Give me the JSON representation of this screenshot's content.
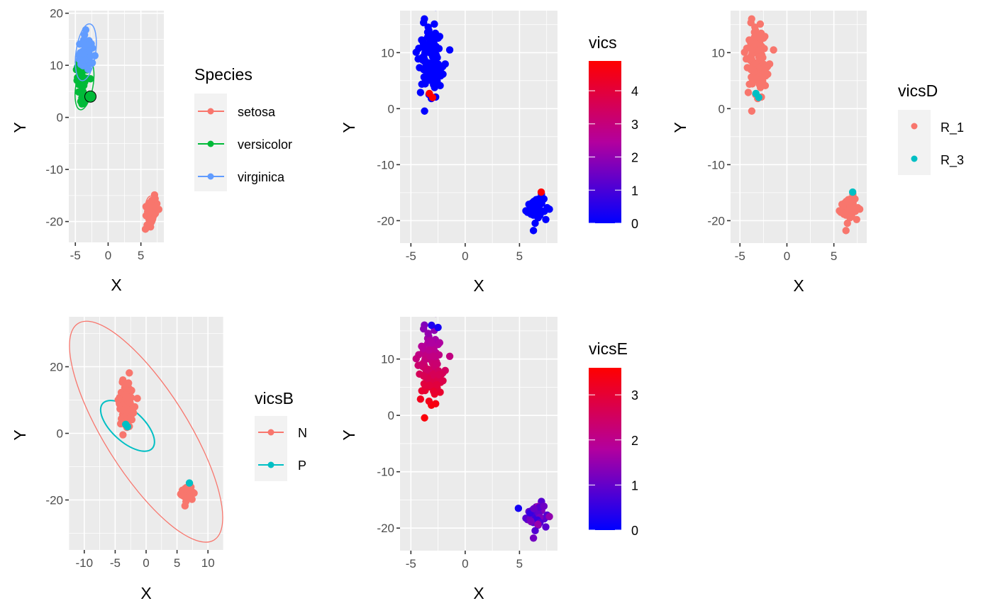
{
  "chart_data": [
    {
      "id": "species",
      "type": "scatter",
      "overlay": "ellipse",
      "xlabel": "X",
      "ylabel": "Y",
      "xlim": [
        -6,
        8.5
      ],
      "ylim": [
        -24,
        20.5
      ],
      "xticks": [
        -5,
        0,
        5
      ],
      "yticks": [
        -20,
        -10,
        0,
        10,
        20
      ],
      "grid": true,
      "legend": {
        "title": "Species",
        "placement": "right",
        "kind": "line-point",
        "entries": [
          {
            "label": "setosa",
            "color": "#F8766D"
          },
          {
            "label": "versicolor",
            "color": "#00BA38"
          },
          {
            "label": "virginica",
            "color": "#619CFF"
          }
        ]
      },
      "series": [
        {
          "name": "setosa",
          "color": "#F8766D",
          "center": [
            6.5,
            -18
          ],
          "spread": [
            0.55,
            1.6
          ],
          "n": 50,
          "ellipse": {
            "center": [
              6.5,
              -18
            ],
            "rx": 0.9,
            "ry": 2.9,
            "angle": 0
          }
        },
        {
          "name": "versicolor",
          "color": "#00BA38",
          "center": [
            -3.9,
            6.5
          ],
          "spread": [
            0.55,
            2.3
          ],
          "n": 50,
          "ellipse": {
            "center": [
              -3.6,
              6.2
            ],
            "rx": 1.3,
            "ry": 4.8,
            "angle": 10
          }
        },
        {
          "name": "virginica",
          "color": "#619CFF",
          "center": [
            -3.4,
            12.5
          ],
          "spread": [
            0.7,
            1.8
          ],
          "n": 50,
          "ellipse": {
            "center": [
              -3.4,
              12.5
            ],
            "rx": 1.5,
            "ry": 5.5,
            "angle": 8
          }
        }
      ],
      "highlight": {
        "x": -2.7,
        "y": 4.0,
        "label": "highlighted point",
        "color": "#00BA38"
      }
    },
    {
      "id": "vics",
      "type": "scatter",
      "xlabel": "X",
      "ylabel": "Y",
      "xlim": [
        -6,
        8.5
      ],
      "ylim": [
        -24,
        17.5
      ],
      "xticks": [
        -5,
        0,
        5
      ],
      "yticks": [
        -20,
        -10,
        0,
        10
      ],
      "grid": true,
      "colorbar": {
        "title": "vics",
        "min": 0,
        "max": 4.9,
        "ticks": [
          0,
          1,
          2,
          3,
          4
        ],
        "low_color": "#0000FF",
        "high_color": "#FF0000",
        "placement": "right"
      },
      "clusters": [
        {
          "center": [
            -3.3,
            9.0
          ],
          "spread": [
            0.9,
            3.8
          ],
          "n": 100,
          "value": 0
        },
        {
          "center": [
            6.5,
            -18.0
          ],
          "spread": [
            0.55,
            1.6
          ],
          "n": 50,
          "value": 0
        }
      ],
      "special_points": [
        {
          "x": -3.3,
          "y": 2.7,
          "value": 4.9
        },
        {
          "x": -3.0,
          "y": 2.0,
          "value": 4.9
        },
        {
          "x": 7.0,
          "y": -14.9,
          "value": 4.9
        }
      ]
    },
    {
      "id": "vicsD",
      "type": "scatter",
      "xlabel": "X",
      "ylabel": "Y",
      "xlim": [
        -6,
        8.5
      ],
      "ylim": [
        -24,
        17.5
      ],
      "xticks": [
        -5,
        0,
        5
      ],
      "yticks": [
        -20,
        -10,
        0,
        10
      ],
      "grid": true,
      "legend": {
        "title": "vicsD",
        "placement": "right",
        "kind": "point",
        "entries": [
          {
            "label": "R_1",
            "color": "#F8766D"
          },
          {
            "label": "R_3",
            "color": "#00BFC4"
          }
        ]
      },
      "clusters": [
        {
          "center": [
            -3.3,
            9.0
          ],
          "spread": [
            0.9,
            3.8
          ],
          "n": 100,
          "color": "#F8766D"
        },
        {
          "center": [
            6.5,
            -18.0
          ],
          "spread": [
            0.55,
            1.6
          ],
          "n": 50,
          "color": "#F8766D"
        }
      ],
      "special_points": [
        {
          "x": -3.3,
          "y": 2.7,
          "color": "#00BFC4"
        },
        {
          "x": -3.0,
          "y": 2.0,
          "color": "#00BFC4"
        },
        {
          "x": 7.0,
          "y": -14.9,
          "color": "#00BFC4"
        }
      ]
    },
    {
      "id": "vicsB",
      "type": "scatter",
      "overlay": "ellipse",
      "xlabel": "X",
      "ylabel": "Y",
      "xlim": [
        -12.5,
        12.5
      ],
      "ylim": [
        -35,
        35
      ],
      "xticks": [
        -10,
        -5,
        0,
        5,
        10
      ],
      "yticks": [
        -20,
        0,
        20
      ],
      "grid": true,
      "legend": {
        "title": "vicsB",
        "placement": "right",
        "kind": "line-point",
        "entries": [
          {
            "label": "N",
            "color": "#F8766D"
          },
          {
            "label": "P",
            "color": "#00BFC4"
          }
        ]
      },
      "clusters": [
        {
          "center": [
            -3.3,
            9.0
          ],
          "spread": [
            0.9,
            3.8
          ],
          "n": 100,
          "color": "#F8766D"
        },
        {
          "center": [
            6.5,
            -18.0
          ],
          "spread": [
            0.55,
            1.6
          ],
          "n": 50,
          "color": "#F8766D"
        }
      ],
      "special_points": [
        {
          "x": -3.3,
          "y": 2.7,
          "color": "#00BFC4"
        },
        {
          "x": -3.0,
          "y": 2.0,
          "color": "#00BFC4"
        },
        {
          "x": 7.0,
          "y": -14.9,
          "color": "#00BFC4"
        }
      ],
      "ellipses": [
        {
          "name": "N",
          "color": "#F8766D",
          "points": [
            [
              -11,
              33
            ],
            [
              11,
              -32
            ]
          ],
          "width": 4.2
        },
        {
          "name": "P",
          "color": "#00BFC4",
          "points": [
            [
              -7,
              9
            ],
            [
              1,
              -4.5
            ]
          ],
          "width": 1.6
        }
      ]
    },
    {
      "id": "vicsE",
      "type": "scatter",
      "xlabel": "X",
      "ylabel": "Y",
      "xlim": [
        -6,
        8.5
      ],
      "ylim": [
        -24,
        17.5
      ],
      "xticks": [
        -5,
        0,
        5
      ],
      "yticks": [
        -20,
        -10,
        0,
        10
      ],
      "grid": true,
      "colorbar": {
        "title": "vicsE",
        "min": 0,
        "max": 3.6,
        "ticks": [
          0,
          1,
          2,
          3
        ],
        "low_color": "#0000FF",
        "high_color": "#FF0000",
        "placement": "right"
      },
      "clusters": [
        {
          "center": [
            -3.3,
            9.0
          ],
          "spread": [
            0.9,
            3.8
          ],
          "n": 100,
          "value_at_bottom": 3.5,
          "value_at_top": 1.2
        },
        {
          "center": [
            6.5,
            -18.0
          ],
          "spread": [
            0.55,
            1.6
          ],
          "n": 50,
          "value_range": [
            0.5,
            1.6
          ]
        }
      ],
      "special_points": [
        {
          "x": 4.9,
          "y": -16.5,
          "value": 0.2
        },
        {
          "x": -3.1,
          "y": 16.0,
          "value": 0.3
        },
        {
          "x": -2.5,
          "y": 15.6,
          "value": 0.2
        }
      ]
    }
  ]
}
